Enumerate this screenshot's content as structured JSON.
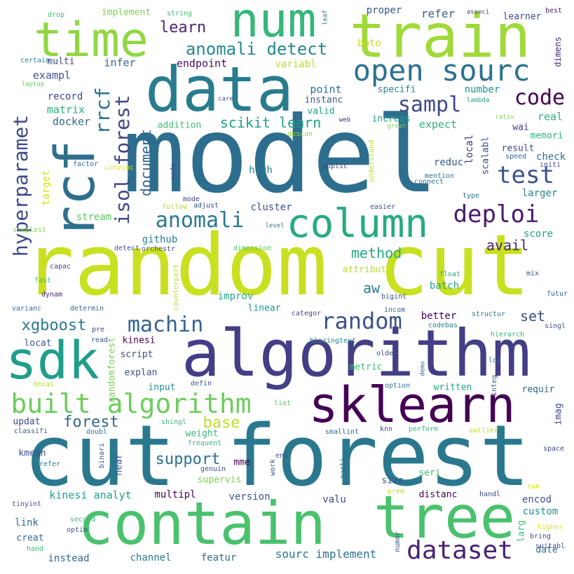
{
  "words": [
    {
      "text": "model",
      "color": "#2d6e8e"
    },
    {
      "text": "random cut",
      "color": "#c8e020"
    },
    {
      "text": "cut forest",
      "color": "#2a788e"
    },
    {
      "text": "algorithm",
      "color": "#433e85"
    },
    {
      "text": "data",
      "color": "#287c8e"
    },
    {
      "text": "train",
      "color": "#a0da39"
    },
    {
      "text": "contain",
      "color": "#4ac16d"
    },
    {
      "text": "tree",
      "color": "#4ac16d"
    },
    {
      "text": "num",
      "color": "#35b779"
    },
    {
      "text": "time",
      "color": "#90d743"
    },
    {
      "text": "rcf",
      "color": "#2e6f8e"
    },
    {
      "text": "sdk",
      "color": "#1f9e89"
    },
    {
      "text": "sklearn",
      "color": "#440154"
    },
    {
      "text": "column",
      "color": "#25ab82"
    },
    {
      "text": "open sourc",
      "color": "#2c728e"
    },
    {
      "text": "built algorithm",
      "color": "#6ccd5a"
    },
    {
      "text": "dataset",
      "color": "#482173"
    },
    {
      "text": "deploi",
      "color": "#481a6c"
    },
    {
      "text": "random",
      "color": "#3b528b"
    },
    {
      "text": "machin",
      "color": "#33638d"
    },
    {
      "text": "anomali",
      "color": "#2a788e"
    },
    {
      "text": "anomali detect",
      "color": "#23898e"
    },
    {
      "text": "test",
      "color": "#3b528b"
    },
    {
      "text": "code",
      "color": "#440154"
    },
    {
      "text": "sampl",
      "color": "#3e4a89"
    },
    {
      "text": "hyperparamet",
      "color": "#3e4989"
    },
    {
      "text": "isol forest",
      "color": "#3f4788"
    },
    {
      "text": "rrcf",
      "color": "#2c728e"
    },
    {
      "text": "learn",
      "color": "#482677"
    },
    {
      "text": "forest",
      "color": "#31688e"
    },
    {
      "text": "support",
      "color": "#2d708e"
    },
    {
      "text": "base",
      "color": "#bddf26"
    },
    {
      "text": "xgboost",
      "color": "#2a788e"
    },
    {
      "text": "scikit learn",
      "color": "#1fa187"
    },
    {
      "text": "method",
      "color": "#22a884"
    },
    {
      "text": "document",
      "color": "#32648e"
    },
    {
      "text": "avail",
      "color": "#482475"
    },
    {
      "text": "set",
      "color": "#3c4f8a"
    },
    {
      "text": "aw",
      "color": "#287d8e"
    },
    {
      "text": "endpoint",
      "color": "#460a5d"
    },
    {
      "text": "infer",
      "color": "#32658e"
    },
    {
      "text": "exampl",
      "color": "#3b528b"
    },
    {
      "text": "matrix",
      "color": "#2ab07f"
    },
    {
      "text": "docker",
      "color": "#31688e"
    },
    {
      "text": "record",
      "color": "#404588"
    },
    {
      "text": "multi",
      "color": "#3f4788"
    },
    {
      "text": "target",
      "color": "#d2e21b"
    },
    {
      "text": "stream",
      "color": "#5ec962"
    },
    {
      "text": "github",
      "color": "#26828e"
    },
    {
      "text": "cluster",
      "color": "#3b528b"
    },
    {
      "text": "high",
      "color": "#25858e"
    },
    {
      "text": "addition",
      "color": "#3dbc74"
    },
    {
      "text": "point",
      "color": "#2d708e"
    },
    {
      "text": "instanc",
      "color": "#38598c"
    },
    {
      "text": "valid",
      "color": "#1fa187"
    },
    {
      "text": "specifi",
      "color": "#26828e"
    },
    {
      "text": "number",
      "color": "#20928c"
    },
    {
      "text": "refer",
      "color": "#355f8d"
    },
    {
      "text": "proper",
      "color": "#39568c"
    },
    {
      "text": "boto",
      "color": "#cae11f"
    },
    {
      "text": "variabl",
      "color": "#b8de29"
    },
    {
      "text": "implement",
      "color": "#7ad151"
    },
    {
      "text": "string",
      "color": "#3dbc74"
    },
    {
      "text": "drop",
      "color": "#3dbc74"
    },
    {
      "text": "leaf",
      "color": "#31688e"
    },
    {
      "text": "associ",
      "color": "#443983"
    },
    {
      "text": "learner",
      "color": "#414487"
    },
    {
      "text": "best",
      "color": "#481f70"
    },
    {
      "text": "dimens",
      "color": "#472a7a"
    },
    {
      "text": "certain",
      "color": "#26828e"
    },
    {
      "text": "laptop",
      "color": "#5ec962"
    },
    {
      "text": "care",
      "color": "#3f4788"
    },
    {
      "text": "increas",
      "color": "#1fa187"
    },
    {
      "text": "great",
      "color": "#86d549"
    },
    {
      "text": "web",
      "color": "#482878"
    },
    {
      "text": "lambda",
      "color": "#21918c"
    },
    {
      "text": "expect",
      "color": "#2eb37c"
    },
    {
      "text": "real",
      "color": "#29af7f"
    },
    {
      "text": "ratio",
      "color": "#7ad151"
    },
    {
      "text": "wai",
      "color": "#443a83"
    },
    {
      "text": "memori",
      "color": "#2fb47c"
    },
    {
      "text": "local",
      "color": "#453581"
    },
    {
      "text": "scalabl",
      "color": "#3b528b"
    },
    {
      "text": "result",
      "color": "#3e4a89"
    },
    {
      "text": "check",
      "color": "#2e6e8e"
    },
    {
      "text": "speed",
      "color": "#31688e"
    },
    {
      "text": "initi",
      "color": "#3f4788"
    },
    {
      "text": "dbscan",
      "color": "#9bd93c"
    },
    {
      "text": "hot",
      "color": "#31688e"
    },
    {
      "text": "understand",
      "color": "#b5de2b"
    },
    {
      "text": "applic",
      "color": "#404588"
    },
    {
      "text": "reduc",
      "color": "#38588c"
    },
    {
      "text": "connect",
      "color": "#2d708e"
    },
    {
      "text": "mention",
      "color": "#2c728e"
    },
    {
      "text": "larger",
      "color": "#26828e"
    },
    {
      "text": "type",
      "color": "#2c728e"
    },
    {
      "text": "easier",
      "color": "#3b528b"
    },
    {
      "text": "score",
      "color": "#1fa187"
    },
    {
      "text": "factor",
      "color": "#31688e"
    },
    {
      "text": "convinc",
      "color": "#dde318"
    },
    {
      "text": "node",
      "color": "#3b528b"
    },
    {
      "text": "mode",
      "color": "#404588"
    },
    {
      "text": "follow",
      "color": "#b5de2b"
    },
    {
      "text": "adjust",
      "color": "#3b528b"
    },
    {
      "text": "level",
      "color": "#2c728e"
    },
    {
      "text": "simplest",
      "color": "#86d549"
    },
    {
      "text": "orchestr",
      "color": "#3b528b"
    },
    {
      "text": "detect",
      "color": "#3b528b"
    },
    {
      "text": "dimension",
      "color": "#54c568"
    },
    {
      "text": "capac",
      "color": "#3e4989"
    },
    {
      "text": "fast",
      "color": "#3dbc74"
    },
    {
      "text": "dynam",
      "color": "#482878"
    },
    {
      "text": "counterpart",
      "color": "#b5de2b"
    },
    {
      "text": "attribut",
      "color": "#b5de2b"
    },
    {
      "text": "batch",
      "color": "#20a486"
    },
    {
      "text": "float",
      "color": "#25ab82"
    },
    {
      "text": "mix",
      "color": "#3b528b"
    },
    {
      "text": "futur",
      "color": "#31688e"
    },
    {
      "text": "varianc",
      "color": "#2c728e"
    },
    {
      "text": "determin",
      "color": "#31688e"
    },
    {
      "text": "improv",
      "color": "#22a884"
    },
    {
      "text": "bigint",
      "color": "#3b528b"
    },
    {
      "text": "incom",
      "color": "#31688e"
    },
    {
      "text": "better",
      "color": "#440154"
    },
    {
      "text": "linear",
      "color": "#21918c"
    },
    {
      "text": "categor",
      "color": "#3e4a89"
    },
    {
      "text": "structur",
      "color": "#2a788e"
    },
    {
      "text": "singl",
      "color": "#3b528b"
    },
    {
      "text": "pre",
      "color": "#3e4989"
    },
    {
      "text": "read",
      "color": "#3b528b"
    },
    {
      "text": "locat",
      "color": "#3b528b"
    },
    {
      "text": "kinesi",
      "color": "#440154"
    },
    {
      "text": "blazingtext",
      "color": "#26828e"
    },
    {
      "text": "codebas",
      "color": "#26828e"
    },
    {
      "text": "hierarch",
      "color": "#35b779"
    },
    {
      "text": "randomforest",
      "color": "#7ad151"
    },
    {
      "text": "script",
      "color": "#3e4a89"
    },
    {
      "text": "explan",
      "color": "#3b528b"
    },
    {
      "text": "input",
      "color": "#21918c"
    },
    {
      "text": "older",
      "color": "#3b528b"
    },
    {
      "text": "metric",
      "color": "#3dbc74"
    },
    {
      "text": "demo",
      "color": "#31688e"
    },
    {
      "text": "log",
      "color": "#2a788e"
    },
    {
      "text": "integ",
      "color": "#3b528b"
    },
    {
      "text": "written",
      "color": "#20a486"
    },
    {
      "text": "requir",
      "color": "#31688e"
    },
    {
      "text": "imag",
      "color": "#404588"
    },
    {
      "text": "decai",
      "color": "#b5de2b"
    },
    {
      "text": "defin",
      "color": "#3b528b"
    },
    {
      "text": "option",
      "color": "#2a788e"
    },
    {
      "text": "list",
      "color": "#54c568"
    },
    {
      "text": "updat",
      "color": "#3e4a89"
    },
    {
      "text": "weight",
      "color": "#35b779"
    },
    {
      "text": "classifi",
      "color": "#3b528b"
    },
    {
      "text": "shingl",
      "color": "#3dbc74"
    },
    {
      "text": "doubl",
      "color": "#2c728e"
    },
    {
      "text": "smallint",
      "color": "#31688e"
    },
    {
      "text": "knn",
      "color": "#3b528b"
    },
    {
      "text": "perform",
      "color": "#35b779"
    },
    {
      "text": "outlier",
      "color": "#b5de2b"
    },
    {
      "text": "space",
      "color": "#404588"
    },
    {
      "text": "kmean",
      "color": "#3b528b"
    },
    {
      "text": "prefer",
      "color": "#2a788e"
    },
    {
      "text": "frequent",
      "color": "#35b779"
    },
    {
      "text": "binari",
      "color": "#3b528b"
    },
    {
      "text": "mme",
      "color": "#440154"
    },
    {
      "text": "near",
      "color": "#3b528b"
    },
    {
      "text": "genuin",
      "color": "#3e4989"
    },
    {
      "text": "work",
      "color": "#3b528b"
    },
    {
      "text": "end",
      "color": "#3b528b"
    },
    {
      "text": "parti",
      "color": "#31688e"
    },
    {
      "text": "seri",
      "color": "#3dbc74"
    },
    {
      "text": "supervis",
      "color": "#7ad151"
    },
    {
      "text": "size",
      "color": "#3b528b"
    },
    {
      "text": "kinesi analyt",
      "color": "#1f9e89"
    },
    {
      "text": "multipl",
      "color": "#440154"
    },
    {
      "text": "version",
      "color": "#3b528b"
    },
    {
      "text": "valu",
      "color": "#3e4a89"
    },
    {
      "text": "distanc",
      "color": "#440154"
    },
    {
      "text": "encod",
      "color": "#3b528b"
    },
    {
      "text": "custom",
      "color": "#21918c"
    },
    {
      "text": "prem",
      "color": "#b5de2b"
    },
    {
      "text": "handl",
      "color": "#3e4a89"
    },
    {
      "text": "run",
      "color": "#d8e219"
    },
    {
      "text": "larg",
      "color": "#3dbc74"
    },
    {
      "text": "higher",
      "color": "#dde318"
    },
    {
      "text": "bring",
      "color": "#3b528b"
    },
    {
      "text": "date",
      "color": "#31688e"
    },
    {
      "text": "suitabl",
      "color": "#3b528b"
    },
    {
      "text": "tinyint",
      "color": "#3b528b"
    },
    {
      "text": "link",
      "color": "#31688e"
    },
    {
      "text": "creat",
      "color": "#31688e"
    },
    {
      "text": "hand",
      "color": "#3dbc74"
    },
    {
      "text": "second",
      "color": "#35b779"
    },
    {
      "text": "optim",
      "color": "#3b528b"
    },
    {
      "text": "instead",
      "color": "#31688e"
    },
    {
      "text": "channel",
      "color": "#2a788e"
    },
    {
      "text": "featur",
      "color": "#31688e"
    },
    {
      "text": "sourc implement",
      "color": "#2c728e"
    },
    {
      "text": "numer",
      "color": "#3b528b"
    }
  ]
}
